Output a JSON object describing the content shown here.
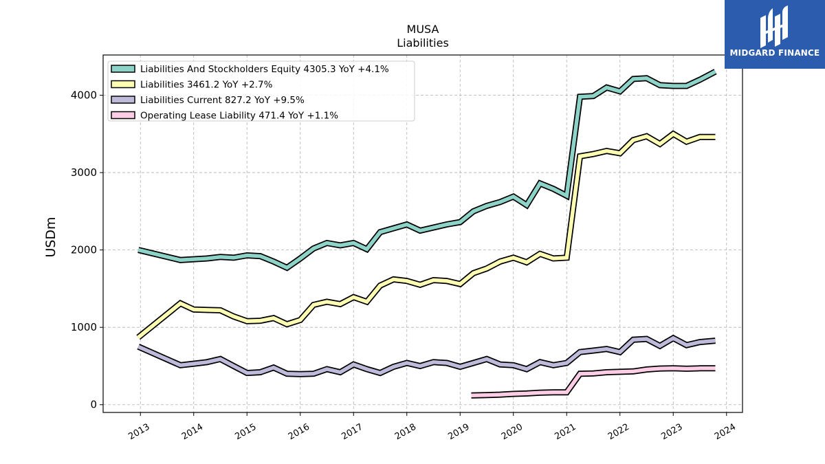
{
  "brand": {
    "name": "MIDGARD FINANCE",
    "color": "#2b5cae"
  },
  "chart_data": {
    "type": "line",
    "title": "MUSA",
    "subtitle": "Liabilities",
    "ylabel": "USDm",
    "xlabel": "",
    "ylim": [
      -100,
      4520
    ],
    "xlim": [
      2012.3,
      2024.3
    ],
    "yticks": [
      0,
      1000,
      2000,
      3000,
      4000
    ],
    "xticks": [
      "2013",
      "2014",
      "2015",
      "2016",
      "2017",
      "2018",
      "2019",
      "2020",
      "2021",
      "2022",
      "2023",
      "2024"
    ],
    "grid": true,
    "legend_position": "top-left",
    "series": [
      {
        "name": "Liabilities And Stockholders Equity",
        "legend": "Liabilities And Stockholders Equity  4305.3 YoY +4.1%",
        "color": "#8dd3c7",
        "points": [
          [
            2012.96,
            2000
          ],
          [
            2013.75,
            1870
          ],
          [
            2014.0,
            1880
          ],
          [
            2014.25,
            1890
          ],
          [
            2014.5,
            1910
          ],
          [
            2014.75,
            1900
          ],
          [
            2015.0,
            1930
          ],
          [
            2015.25,
            1920
          ],
          [
            2015.5,
            1850
          ],
          [
            2015.75,
            1770
          ],
          [
            2016.0,
            1890
          ],
          [
            2016.25,
            2020
          ],
          [
            2016.5,
            2090
          ],
          [
            2016.75,
            2060
          ],
          [
            2017.0,
            2090
          ],
          [
            2017.25,
            2010
          ],
          [
            2017.5,
            2230
          ],
          [
            2017.75,
            2280
          ],
          [
            2018.0,
            2330
          ],
          [
            2018.25,
            2250
          ],
          [
            2018.5,
            2290
          ],
          [
            2018.75,
            2330
          ],
          [
            2019.0,
            2360
          ],
          [
            2019.25,
            2500
          ],
          [
            2019.5,
            2570
          ],
          [
            2019.75,
            2620
          ],
          [
            2020.0,
            2690
          ],
          [
            2020.25,
            2580
          ],
          [
            2020.5,
            2860
          ],
          [
            2020.75,
            2790
          ],
          [
            2021.0,
            2700
          ],
          [
            2021.25,
            3980
          ],
          [
            2021.5,
            3990
          ],
          [
            2021.75,
            4100
          ],
          [
            2022.0,
            4050
          ],
          [
            2022.25,
            4210
          ],
          [
            2022.5,
            4220
          ],
          [
            2022.75,
            4130
          ],
          [
            2023.0,
            4120
          ],
          [
            2023.25,
            4120
          ],
          [
            2023.5,
            4200
          ],
          [
            2023.79,
            4305.3
          ]
        ]
      },
      {
        "name": "Liabilities",
        "legend": "Liabilities  3461.2 YoY +2.7%",
        "color": "#ffffb3",
        "points": [
          [
            2012.96,
            870
          ],
          [
            2013.75,
            1310
          ],
          [
            2014.0,
            1230
          ],
          [
            2014.25,
            1225
          ],
          [
            2014.5,
            1220
          ],
          [
            2014.75,
            1140
          ],
          [
            2015.0,
            1080
          ],
          [
            2015.25,
            1085
          ],
          [
            2015.5,
            1120
          ],
          [
            2015.75,
            1040
          ],
          [
            2016.0,
            1095
          ],
          [
            2016.25,
            1290
          ],
          [
            2016.5,
            1330
          ],
          [
            2016.75,
            1300
          ],
          [
            2017.0,
            1390
          ],
          [
            2017.25,
            1330
          ],
          [
            2017.5,
            1540
          ],
          [
            2017.75,
            1620
          ],
          [
            2018.0,
            1600
          ],
          [
            2018.25,
            1550
          ],
          [
            2018.5,
            1610
          ],
          [
            2018.75,
            1600
          ],
          [
            2019.0,
            1560
          ],
          [
            2019.25,
            1700
          ],
          [
            2019.5,
            1760
          ],
          [
            2019.75,
            1850
          ],
          [
            2020.0,
            1900
          ],
          [
            2020.25,
            1840
          ],
          [
            2020.5,
            1950
          ],
          [
            2020.75,
            1890
          ],
          [
            2021.0,
            1900
          ],
          [
            2021.25,
            3210
          ],
          [
            2021.5,
            3240
          ],
          [
            2021.75,
            3280
          ],
          [
            2022.0,
            3250
          ],
          [
            2022.25,
            3420
          ],
          [
            2022.5,
            3470
          ],
          [
            2022.75,
            3370
          ],
          [
            2023.0,
            3500
          ],
          [
            2023.25,
            3400
          ],
          [
            2023.5,
            3460
          ],
          [
            2023.79,
            3461.2
          ]
        ]
      },
      {
        "name": "Liabilities Current",
        "legend": "Liabilities Current  827.2 YoY +9.5%",
        "color": "#bebada",
        "points": [
          [
            2012.96,
            750
          ],
          [
            2013.75,
            510
          ],
          [
            2014.0,
            530
          ],
          [
            2014.25,
            550
          ],
          [
            2014.5,
            590
          ],
          [
            2014.75,
            500
          ],
          [
            2015.0,
            410
          ],
          [
            2015.25,
            420
          ],
          [
            2015.5,
            480
          ],
          [
            2015.75,
            400
          ],
          [
            2016.0,
            395
          ],
          [
            2016.25,
            400
          ],
          [
            2016.5,
            460
          ],
          [
            2016.75,
            420
          ],
          [
            2017.0,
            520
          ],
          [
            2017.25,
            460
          ],
          [
            2017.5,
            410
          ],
          [
            2017.75,
            490
          ],
          [
            2018.0,
            540
          ],
          [
            2018.25,
            500
          ],
          [
            2018.5,
            550
          ],
          [
            2018.75,
            540
          ],
          [
            2019.0,
            490
          ],
          [
            2019.25,
            540
          ],
          [
            2019.5,
            590
          ],
          [
            2019.75,
            520
          ],
          [
            2020.0,
            510
          ],
          [
            2020.25,
            460
          ],
          [
            2020.5,
            550
          ],
          [
            2020.75,
            510
          ],
          [
            2021.0,
            540
          ],
          [
            2021.25,
            680
          ],
          [
            2021.5,
            700
          ],
          [
            2021.75,
            720
          ],
          [
            2022.0,
            680
          ],
          [
            2022.25,
            840
          ],
          [
            2022.5,
            850
          ],
          [
            2022.75,
            760
          ],
          [
            2023.0,
            860
          ],
          [
            2023.25,
            770
          ],
          [
            2023.5,
            810
          ],
          [
            2023.79,
            827.2
          ]
        ]
      },
      {
        "name": "Operating Lease Liability",
        "legend": "Operating Lease Liability  471.4 YoY +1.1%",
        "color": "#fccde5",
        "points": [
          [
            2019.21,
            120
          ],
          [
            2019.5,
            125
          ],
          [
            2019.75,
            130
          ],
          [
            2020.0,
            140
          ],
          [
            2020.25,
            145
          ],
          [
            2020.5,
            155
          ],
          [
            2020.75,
            160
          ],
          [
            2021.0,
            160
          ],
          [
            2021.25,
            400
          ],
          [
            2021.5,
            405
          ],
          [
            2021.75,
            420
          ],
          [
            2022.0,
            425
          ],
          [
            2022.25,
            430
          ],
          [
            2022.5,
            455
          ],
          [
            2022.75,
            468
          ],
          [
            2023.0,
            470
          ],
          [
            2023.25,
            465
          ],
          [
            2023.5,
            470
          ],
          [
            2023.79,
            471.4
          ]
        ]
      }
    ]
  }
}
